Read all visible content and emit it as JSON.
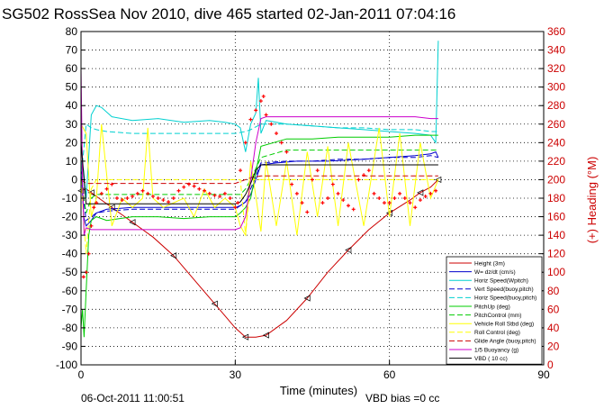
{
  "chart_data": {
    "type": "line",
    "title": "SG502 RossSea Nov 2010, dive 465 started 02-Jan-2011 07:04:16",
    "xlabel": "Time (minutes)",
    "ylabel_right": "(+) Heading (°M)",
    "footer_left": "06-Oct-2011 11:00:51",
    "footer_right": "VBD bias =0 cc",
    "xlim": [
      0,
      90
    ],
    "ylim": [
      -100,
      80
    ],
    "y2lim": [
      0,
      360
    ],
    "x_ticks": [
      0,
      30,
      60,
      90
    ],
    "y_ticks": [
      -100,
      -90,
      -80,
      -70,
      -60,
      -50,
      -40,
      -30,
      -20,
      -10,
      0,
      10,
      20,
      30,
      40,
      50,
      60,
      70,
      80
    ],
    "y2_ticks": [
      0,
      20,
      40,
      60,
      80,
      100,
      120,
      140,
      160,
      180,
      200,
      220,
      240,
      260,
      280,
      300,
      320,
      340,
      360
    ],
    "grid": true,
    "legend_position": "bottom-right",
    "series": [
      {
        "name": "Height (3m)",
        "color": "#cc0000",
        "dash": "",
        "marker": "triangle",
        "x": [
          0,
          1,
          2,
          4,
          6,
          8,
          10,
          14,
          18,
          22,
          26,
          30,
          32,
          34,
          36,
          40,
          44,
          48,
          52,
          56,
          60,
          64,
          66,
          68,
          69.5
        ],
        "y": [
          -6,
          -5,
          -7,
          -11,
          -15,
          -19,
          -23,
          -31,
          -41,
          -54,
          -67,
          -80,
          -85,
          -85,
          -84,
          -76,
          -64,
          -50,
          -38,
          -27,
          -18,
          -11,
          -7,
          -4,
          0
        ]
      },
      {
        "name": "W= dz/dt (cm/s)",
        "color": "#0000cc",
        "dash": "",
        "x": [
          0,
          0.5,
          1,
          2,
          3,
          5,
          10,
          15,
          20,
          25,
          28,
          30,
          31,
          32,
          33,
          35,
          38,
          42,
          48,
          55,
          60,
          65,
          68,
          69,
          69.5
        ],
        "y": [
          10,
          -20,
          -25,
          -22,
          -18,
          -16,
          -15,
          -15,
          -15,
          -15,
          -15,
          -15,
          -14,
          -12,
          -8,
          8,
          9,
          10,
          10,
          11,
          12,
          13,
          14,
          15,
          12
        ]
      },
      {
        "name": "Horiz Speed(Wpitch)",
        "color": "#00d0d0",
        "dash": "",
        "x": [
          0,
          0.5,
          1,
          2,
          3,
          4,
          6,
          10,
          15,
          20,
          25,
          28,
          30,
          31,
          32,
          33,
          34,
          34.5,
          35,
          36,
          40,
          45,
          50,
          55,
          60,
          65,
          68,
          69,
          69.5
        ],
        "y": [
          10,
          5,
          -10,
          35,
          40,
          39,
          34,
          32,
          33,
          31,
          32,
          31,
          30,
          28,
          15,
          30,
          36,
          55,
          25,
          32,
          30,
          29,
          28,
          27,
          26,
          25,
          24,
          20,
          75
        ]
      },
      {
        "name": "Vert Speed(buoy,pitch)",
        "color": "#0000cc",
        "dash": "6,3",
        "x": [
          0,
          1,
          2,
          3,
          5,
          10,
          15,
          20,
          25,
          28,
          30,
          32,
          33,
          35,
          40,
          45,
          50,
          55,
          60,
          65,
          68,
          69.5
        ],
        "y": [
          0,
          -22,
          -20,
          -18,
          -17,
          -16,
          -16,
          -16,
          -16,
          -16,
          -16,
          -12,
          -5,
          9,
          10,
          10,
          11,
          11,
          12,
          12,
          13,
          12
        ]
      },
      {
        "name": "Horiz Speed(buoy,pitch)",
        "color": "#00d0d0",
        "dash": "6,3",
        "x": [
          0,
          1,
          2,
          3,
          5,
          10,
          15,
          20,
          25,
          28,
          30,
          32,
          33,
          35,
          40,
          45,
          50,
          55,
          60,
          65,
          68,
          69.5
        ],
        "y": [
          0,
          30,
          28,
          27,
          26,
          25,
          25,
          25,
          25,
          25,
          25,
          26,
          27,
          30,
          30,
          29,
          28,
          28,
          27,
          27,
          26,
          26
        ]
      },
      {
        "name": "PitchUp (deg)",
        "color": "#00cc00",
        "dash": "",
        "x": [
          0,
          0.3,
          0.6,
          1,
          1.5,
          2,
          3,
          5,
          10,
          15,
          20,
          25,
          28,
          30,
          31,
          32,
          33,
          35,
          40,
          45,
          50,
          55,
          60,
          65,
          68,
          69.5
        ],
        "y": [
          -80,
          -70,
          -85,
          -60,
          -30,
          -22,
          -20,
          -22,
          -20,
          -20,
          -21,
          -20,
          -20,
          -20,
          -18,
          -15,
          -10,
          18,
          22,
          22,
          23,
          23,
          23,
          24,
          24,
          24
        ]
      },
      {
        "name": "PitchControl (mm)",
        "color": "#00cc00",
        "dash": "6,3",
        "x": [
          0,
          1,
          2,
          3,
          5,
          10,
          20,
          30,
          31,
          32,
          33,
          35,
          40,
          50,
          60,
          68,
          69.5
        ],
        "y": [
          0,
          -18,
          -10,
          -8,
          -8,
          -8,
          -8,
          -8,
          -8,
          -5,
          0,
          12,
          16,
          16,
          16,
          16,
          16
        ]
      },
      {
        "name": "Vehicle Roll Stbd (deg)",
        "color": "#ffff00",
        "dash": "",
        "x": [
          0,
          1,
          2,
          3,
          4,
          6,
          8,
          10,
          12,
          13,
          14,
          16,
          20,
          22,
          24,
          26,
          28,
          30,
          31,
          32,
          33,
          35,
          36,
          38,
          40,
          42,
          44,
          46,
          48,
          50,
          52,
          55,
          58,
          60,
          62,
          64,
          66,
          68,
          69.5
        ],
        "y": [
          30,
          25,
          -20,
          -10,
          30,
          -25,
          -10,
          -15,
          -10,
          28,
          -10,
          -15,
          -10,
          -20,
          -5,
          -15,
          -10,
          -15,
          -25,
          -30,
          10,
          -28,
          10,
          -25,
          10,
          -30,
          15,
          -20,
          18,
          -25,
          20,
          -25,
          28,
          -20,
          25,
          -25,
          20,
          -10,
          0
        ]
      },
      {
        "name": "Roll Control (deg)",
        "color": "#ffff00",
        "dash": "6,3",
        "x": [
          0,
          1,
          2,
          3,
          5,
          10,
          20,
          30,
          31,
          32,
          33,
          35,
          40,
          50,
          60,
          68,
          69.5
        ],
        "y": [
          0,
          -40,
          -5,
          0,
          0,
          0,
          0,
          0,
          0,
          -30,
          0,
          0,
          0,
          0,
          0,
          0,
          0
        ]
      },
      {
        "name": "Glide Angle (buoy,pitch)",
        "color": "#cc0000",
        "dash": "6,3",
        "x": [
          0,
          1,
          2,
          3,
          5,
          10,
          20,
          30,
          31,
          32,
          33,
          35,
          40,
          50,
          60,
          68,
          69.5
        ],
        "y": [
          0,
          -2,
          -2,
          -2,
          -2,
          -2,
          -2,
          -2,
          -1,
          0,
          1,
          2,
          2,
          2,
          2,
          2,
          2
        ]
      },
      {
        "name": "1/5 Buoyancy (g)",
        "color": "#cc00cc",
        "dash": "",
        "x": [
          0,
          0.3,
          0.6,
          1,
          2,
          3,
          5,
          10,
          15,
          20,
          25,
          28,
          30,
          31,
          32,
          33,
          34,
          35,
          36,
          40,
          50,
          60,
          65,
          68,
          69.5
        ],
        "y": [
          60,
          0,
          -30,
          -26,
          -27,
          -27,
          -27,
          -27,
          -27,
          -27,
          -27,
          -27,
          -27,
          -26,
          -20,
          0,
          20,
          33,
          34,
          34,
          34,
          34,
          34,
          33,
          33
        ]
      },
      {
        "name": "VBD ( 10 cc)",
        "color": "#000000",
        "dash": "",
        "x": [
          0,
          1,
          2,
          3,
          5,
          10,
          20,
          30,
          31,
          32,
          33,
          34,
          35,
          40,
          50,
          60,
          68,
          69.5
        ],
        "y": [
          20,
          -13,
          -13,
          -13,
          -13,
          -13,
          -13,
          -13,
          -12,
          -8,
          -2,
          5,
          8,
          8,
          8,
          8,
          8,
          8
        ]
      }
    ],
    "heading_series": {
      "name": "(+) Heading (°M)",
      "color": "#ff0000",
      "axis": "right",
      "marker": "plus",
      "x": [
        0.5,
        1,
        1.5,
        2,
        2.5,
        3,
        4,
        5,
        6,
        7,
        8,
        9,
        10,
        11,
        12,
        13,
        14,
        15,
        16,
        17,
        18,
        19,
        20,
        21,
        22,
        23,
        24,
        25,
        26,
        27,
        28,
        29,
        30,
        30.5,
        31,
        32,
        33,
        34,
        35,
        35.5,
        36,
        37,
        38,
        39,
        40,
        41,
        42,
        43,
        44,
        45,
        46,
        47,
        48,
        49,
        50,
        51,
        52,
        53,
        54,
        55,
        56,
        57,
        58,
        59,
        60,
        61,
        62,
        63,
        64,
        65,
        66,
        67,
        68,
        69
      ],
      "y": [
        95,
        100,
        120,
        150,
        170,
        175,
        185,
        190,
        195,
        180,
        178,
        180,
        182,
        185,
        188,
        185,
        182,
        180,
        178,
        176,
        180,
        188,
        192,
        195,
        193,
        190,
        188,
        185,
        183,
        182,
        185,
        180,
        170,
        175,
        210,
        240,
        265,
        275,
        285,
        290,
        270,
        260,
        250,
        240,
        230,
        195,
        185,
        175,
        165,
        200,
        210,
        175,
        180,
        195,
        185,
        178,
        172,
        168,
        200,
        205,
        210,
        185,
        180,
        175,
        175,
        180,
        185,
        180,
        175,
        170,
        178,
        182,
        185,
        188
      ]
    }
  }
}
